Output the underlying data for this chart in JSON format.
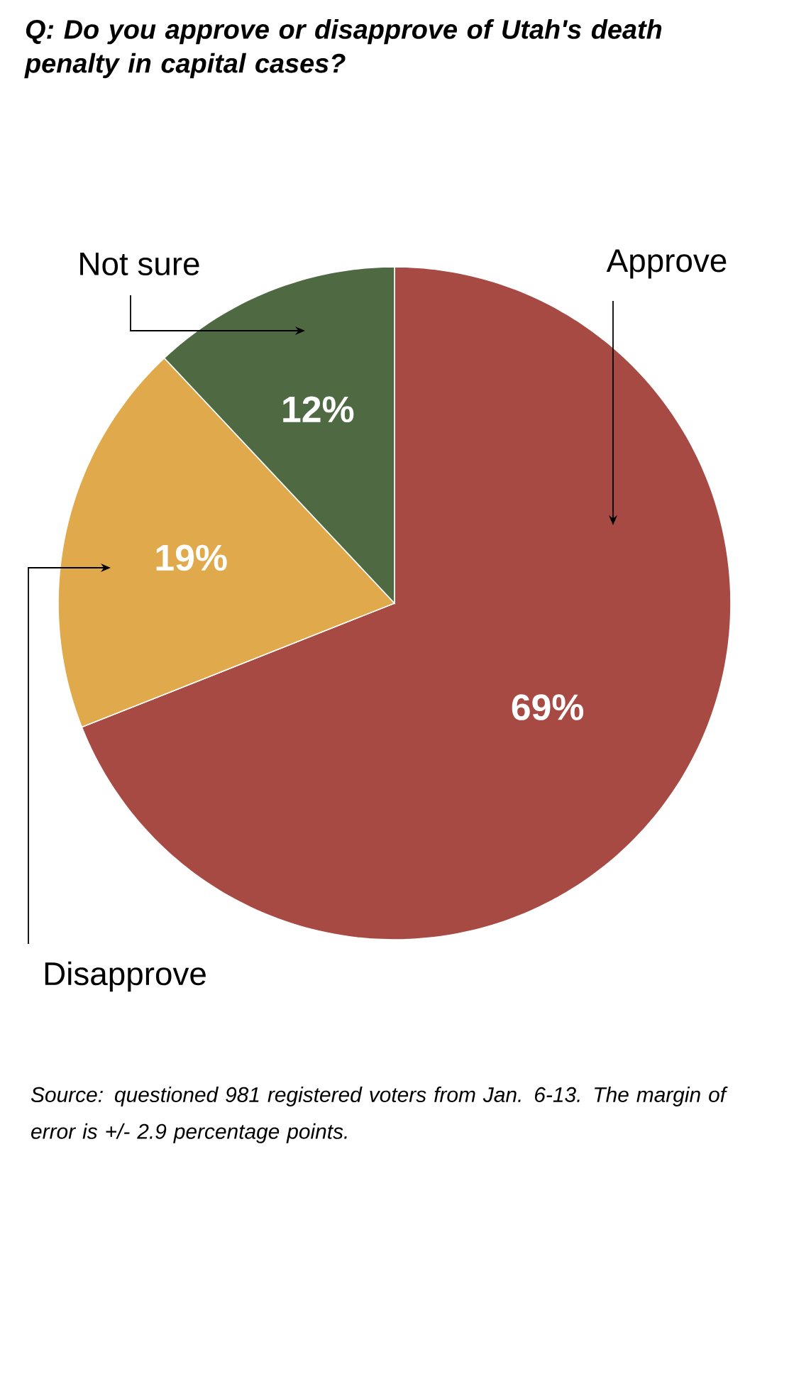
{
  "chart_data": {
    "type": "pie",
    "title": "Q: Do you approve or disapprove of Utah's death penalty in capital cases?",
    "categories": [
      "Approve",
      "Disapprove",
      "Not sure"
    ],
    "values": [
      69,
      19,
      12
    ],
    "colors": [
      "#a84a44",
      "#e0a94c",
      "#4f6a43"
    ],
    "value_labels": [
      "69%",
      "19%",
      "12%"
    ],
    "annotations": [
      "Source: questioned 981 registered voters from Jan. 6-13. The margin of error is +/- 2.9 percentage points."
    ]
  }
}
